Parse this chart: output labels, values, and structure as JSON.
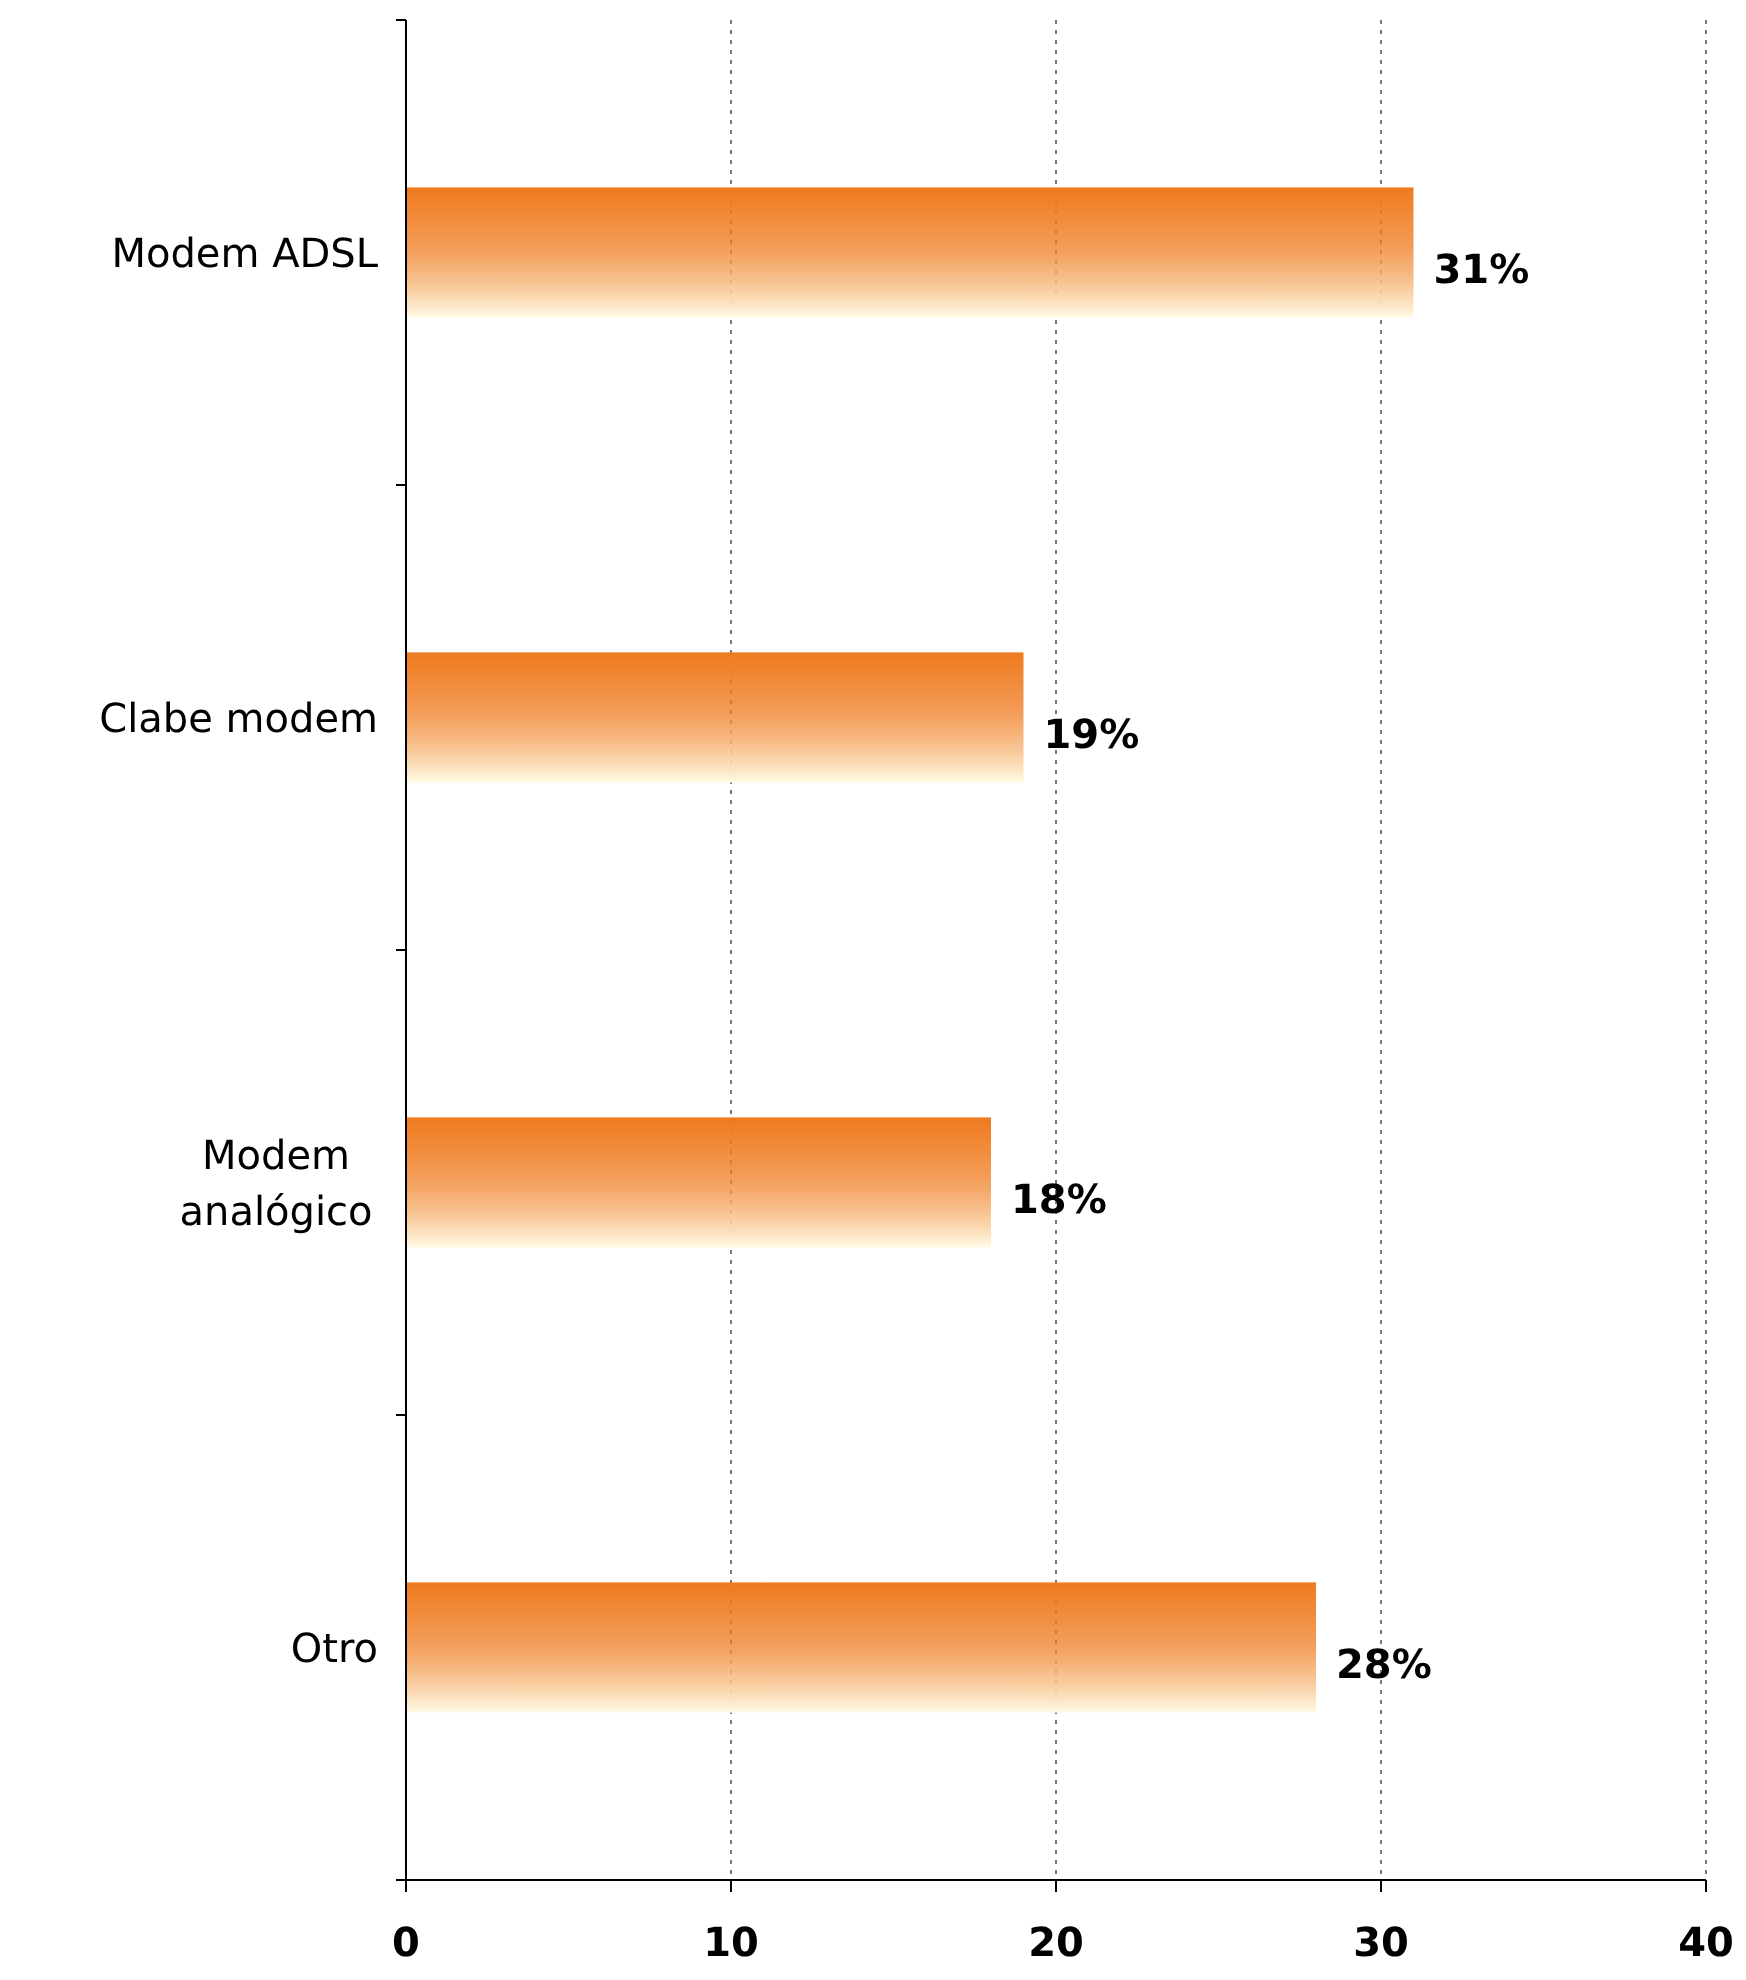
{
  "chart_data": {
    "type": "bar",
    "orientation": "horizontal",
    "categories": [
      "Modem ADSL",
      "Clabe modem",
      "Modem analógico",
      "Otro"
    ],
    "values": [
      31,
      19,
      18,
      28
    ],
    "value_labels": [
      "31%",
      "19%",
      "18%",
      "28%"
    ],
    "color": "#ef7a1e",
    "xlim": [
      0,
      40
    ],
    "xticks": [
      0,
      10,
      20,
      30,
      40
    ],
    "grid": "x"
  }
}
